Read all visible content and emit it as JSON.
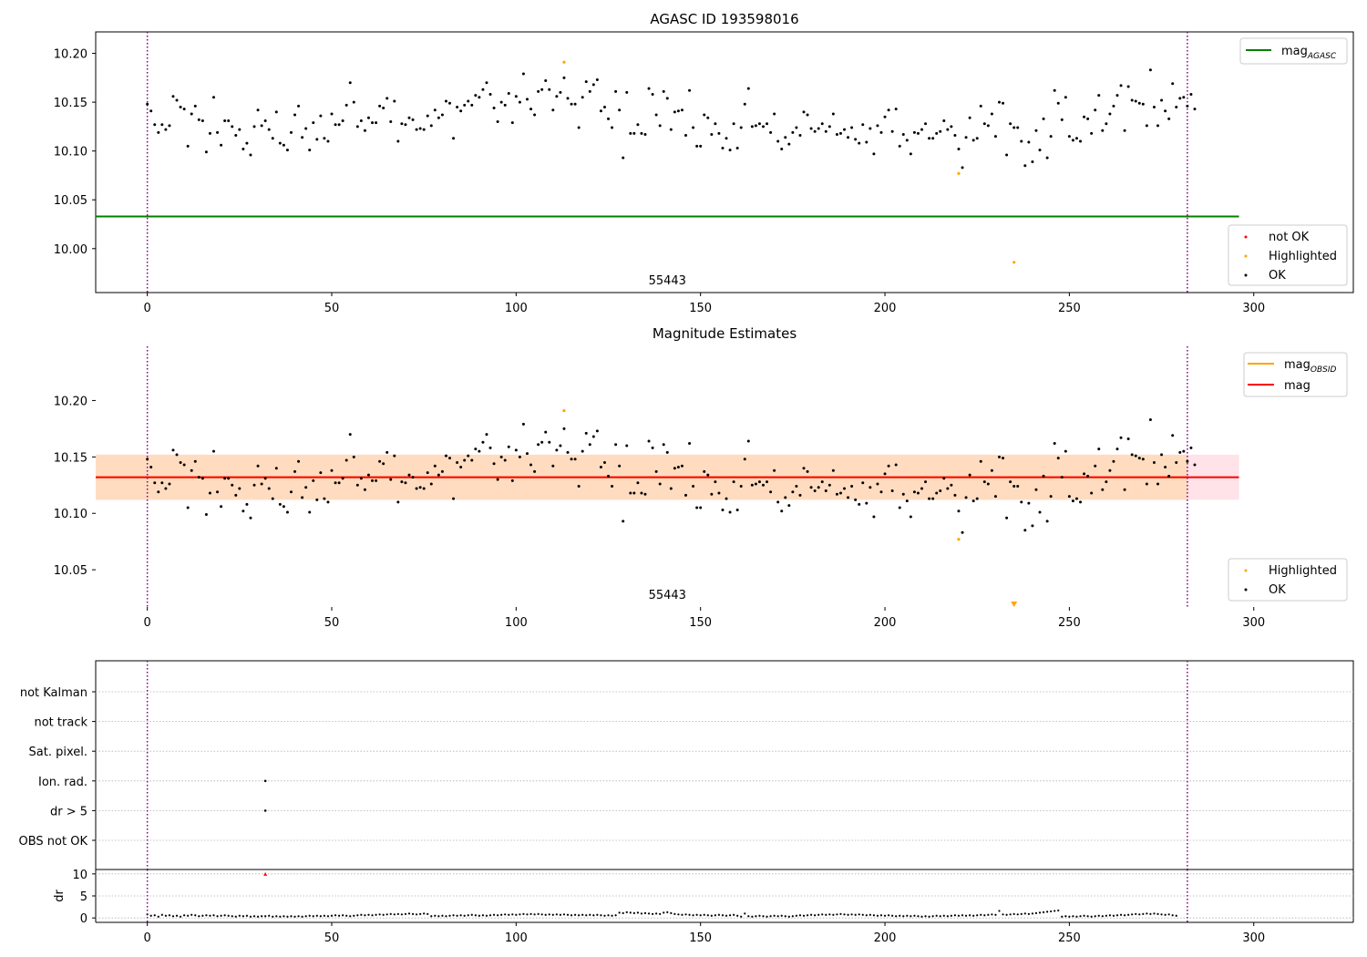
{
  "figure": {
    "background": "#ffffff"
  },
  "colors": {
    "ok": "#000000",
    "highlighted": "#ffa500",
    "not_ok": "#ff0000",
    "agasc_line": "#008000",
    "obsid_line": "#ffa500",
    "mag_line": "#ff0000",
    "band_outer": "#ffc0cb",
    "band_inner": "#ffdab9",
    "obs_boundary": "#800080",
    "grid": "#b0b0b0"
  },
  "chart_data": [
    {
      "id": "agasc",
      "type": "scatter",
      "title": "AGASC ID 193598016",
      "xlim": [
        -14,
        327
      ],
      "ylim": [
        9.955,
        10.222
      ],
      "xticks": [
        0,
        50,
        100,
        150,
        200,
        250,
        300
      ],
      "xtick_labels": [
        "0",
        "50",
        "100",
        "150",
        "200",
        "250",
        "300"
      ],
      "yticks": [
        10.0,
        10.05,
        10.1,
        10.15,
        10.2
      ],
      "ytick_labels": [
        "10.00",
        "10.05",
        "10.10",
        "10.15",
        "10.20"
      ],
      "obs_boundaries": [
        0,
        282
      ],
      "obs_label": {
        "text": "55443",
        "x": 141
      },
      "agasc_mag": 10.033,
      "line_x_range": [
        -14,
        296
      ],
      "legend_lines": [
        {
          "name": "mag",
          "sub": "AGASC",
          "color": "#008000"
        }
      ],
      "legend_points": [
        {
          "name": "not OK",
          "color": "#ff0000"
        },
        {
          "name": "Highlighted",
          "color": "#ffa500"
        },
        {
          "name": "OK",
          "color": "#000000"
        }
      ],
      "ok_series": "ok",
      "highlighted": [
        [
          113,
          10.191
        ],
        [
          220,
          10.077
        ],
        [
          235,
          9.986
        ]
      ]
    },
    {
      "id": "mag_estimates",
      "type": "scatter",
      "title": "Magnitude Estimates",
      "xlim": [
        -14,
        327
      ],
      "ylim": [
        10.017,
        10.248
      ],
      "xticks": [
        0,
        50,
        100,
        150,
        200,
        250,
        300
      ],
      "xtick_labels": [
        "0",
        "50",
        "100",
        "150",
        "200",
        "250",
        "300"
      ],
      "yticks": [
        10.05,
        10.1,
        10.15,
        10.2
      ],
      "ytick_labels": [
        "10.05",
        "10.10",
        "10.15",
        "10.20"
      ],
      "obs_boundaries": [
        0,
        282
      ],
      "obs_label": {
        "text": "55443",
        "x": 141
      },
      "mag_obsid": 10.132,
      "mag": 10.132,
      "band_outer": [
        10.112,
        10.152
      ],
      "band_inner": [
        10.112,
        10.152
      ],
      "line_x_range": [
        -14,
        296
      ],
      "legend_lines": [
        {
          "name": "mag",
          "sub": "OBSID",
          "color": "#ffa500"
        },
        {
          "name": "mag",
          "sub": "",
          "color": "#ff0000"
        }
      ],
      "legend_points": [
        {
          "name": "Highlighted",
          "color": "#ffa500"
        },
        {
          "name": "OK",
          "color": "#000000"
        }
      ],
      "ok_series": "ok",
      "highlighted": [
        [
          113,
          10.191
        ],
        [
          220,
          10.077
        ]
      ],
      "clipped_marker": [
        235,
        10.017
      ]
    },
    {
      "id": "flags",
      "type": "scatter",
      "xlim": [
        -14,
        327
      ],
      "categories": [
        "not Kalman",
        "not track",
        "Sat. pixel.",
        "Ion. rad.",
        "dr > 5",
        "OBS not OK"
      ],
      "flagged_points": [
        {
          "category": "Ion. rad.",
          "x": 32
        },
        {
          "category": "dr > 5",
          "x": 32
        }
      ],
      "obs_boundaries": [
        0,
        282
      ]
    },
    {
      "id": "dr",
      "type": "scatter",
      "ylabel": "dr",
      "xlim": [
        -14,
        327
      ],
      "ylim": [
        -1,
        11
      ],
      "yticks": [
        0,
        5,
        10
      ],
      "ytick_labels": [
        "0",
        "5",
        "10"
      ],
      "xticks": [
        0,
        50,
        100,
        150,
        200,
        250,
        300
      ],
      "xtick_labels": [
        "0",
        "50",
        "100",
        "150",
        "200",
        "250",
        "300"
      ],
      "obs_boundaries": [
        0,
        282
      ],
      "not_ok_marker": [
        32,
        10
      ],
      "dr_values": [
        0.8,
        0.5,
        0.6,
        0.3,
        0.7,
        0.5,
        0.6,
        0.4,
        0.5,
        0.3,
        0.6,
        0.5,
        0.7,
        0.6,
        0.4,
        0.5,
        0.6,
        0.5,
        0.6,
        0.4,
        0.5,
        0.6,
        0.5,
        0.4,
        0.3,
        0.5,
        0.4,
        0.5,
        0.3,
        0.4,
        0.3,
        0.4,
        0.4,
        0.5,
        0.3,
        0.4,
        0.3,
        0.4,
        0.3,
        0.4,
        0.3,
        0.4,
        0.3,
        0.4,
        0.5,
        0.4,
        0.5,
        0.4,
        0.5,
        0.4,
        0.5,
        0.6,
        0.5,
        0.6,
        0.5,
        0.4,
        0.5,
        0.6,
        0.7,
        0.6,
        0.7,
        0.6,
        0.7,
        0.8,
        0.7,
        0.8,
        0.9,
        0.8,
        0.9,
        0.8,
        0.9,
        1.0,
        0.9,
        0.8,
        0.9,
        1.0,
        0.9,
        0.4,
        0.5,
        0.4,
        0.5,
        0.4,
        0.5,
        0.6,
        0.5,
        0.6,
        0.5,
        0.6,
        0.7,
        0.6,
        0.5,
        0.6,
        0.5,
        0.6,
        0.7,
        0.6,
        0.7,
        0.8,
        0.7,
        0.8,
        0.7,
        0.8,
        0.9,
        0.8,
        0.9,
        0.8,
        0.9,
        0.8,
        0.7,
        0.8,
        0.7,
        0.8,
        0.7,
        0.8,
        0.7,
        0.6,
        0.7,
        0.6,
        0.7,
        0.6,
        0.7,
        0.6,
        0.7,
        0.6,
        0.5,
        0.6,
        0.5,
        0.6,
        1.2,
        1.1,
        1.3,
        1.2,
        1.1,
        1.2,
        1.0,
        1.1,
        1.0,
        0.9,
        1.0,
        0.9,
        1.2,
        1.3,
        1.1,
        0.9,
        0.8,
        0.7,
        0.8,
        0.7,
        0.6,
        0.7,
        0.6,
        0.7,
        0.6,
        0.5,
        0.6,
        0.7,
        0.6,
        0.5,
        0.6,
        0.7,
        0.5,
        0.3,
        1.0,
        0.4,
        0.3,
        0.4,
        0.5,
        0.4,
        0.3,
        0.4,
        0.5,
        0.4,
        0.5,
        0.4,
        0.3,
        0.4,
        0.5,
        0.6,
        0.5,
        0.6,
        0.7,
        0.6,
        0.7,
        0.8,
        0.7,
        0.8,
        0.7,
        0.8,
        0.9,
        0.8,
        0.7,
        0.8,
        0.7,
        0.8,
        0.7,
        0.6,
        0.7,
        0.6,
        0.5,
        0.6,
        0.5,
        0.6,
        0.5,
        0.4,
        0.5,
        0.4,
        0.5,
        0.4,
        0.5,
        0.4,
        0.3,
        0.4,
        0.3,
        0.4,
        0.5,
        0.4,
        0.5,
        0.4,
        0.5,
        0.6,
        0.5,
        0.6,
        0.5,
        0.6,
        0.5,
        0.6,
        0.7,
        0.6,
        0.7,
        0.8,
        0.7,
        1.6,
        0.8,
        0.7,
        0.8,
        0.9,
        0.8,
        0.9,
        1.0,
        0.9,
        1.0,
        1.1,
        1.2,
        1.3,
        1.4,
        1.5,
        1.6,
        1.7,
        0.3,
        0.4,
        0.3,
        0.4,
        0.3,
        0.4,
        0.5,
        0.4,
        0.3,
        0.4,
        0.5,
        0.4,
        0.5,
        0.6,
        0.5,
        0.6,
        0.7,
        0.6,
        0.7,
        0.8,
        0.9,
        0.8,
        0.9,
        1.0,
        0.9,
        1.0,
        0.9,
        0.8,
        0.7,
        0.8,
        0.6,
        0.5
      ]
    }
  ],
  "mag_series": {
    "name": "OK",
    "x_start": 0,
    "x_step": 1,
    "values": [
      10.148,
      10.141,
      10.127,
      10.119,
      10.127,
      10.122,
      10.126,
      10.156,
      10.152,
      10.145,
      10.143,
      10.105,
      10.138,
      10.146,
      10.132,
      10.131,
      10.099,
      10.118,
      10.155,
      10.119,
      10.106,
      10.131,
      10.131,
      10.125,
      10.116,
      10.122,
      10.102,
      10.108,
      10.096,
      10.125,
      10.142,
      10.126,
      10.131,
      10.122,
      10.113,
      10.14,
      10.108,
      10.106,
      10.101,
      10.119,
      10.137,
      10.146,
      10.114,
      10.123,
      10.101,
      10.129,
      10.112,
      10.136,
      10.113,
      10.11,
      10.138,
      10.127,
      10.127,
      10.131,
      10.147,
      10.17,
      10.15,
      10.125,
      10.131,
      10.121,
      10.134,
      10.129,
      10.129,
      10.146,
      10.144,
      10.154,
      10.13,
      10.151,
      10.11,
      10.128,
      10.127,
      10.134,
      10.132,
      10.122,
      10.123,
      10.122,
      10.136,
      10.126,
      10.142,
      10.134,
      10.137,
      10.151,
      10.149,
      10.113,
      10.145,
      10.141,
      10.147,
      10.151,
      10.147,
      10.157,
      10.155,
      10.163,
      10.17,
      10.158,
      10.144,
      10.13,
      10.15,
      10.147,
      10.159,
      10.129,
      10.156,
      10.15,
      10.179,
      10.153,
      10.143,
      10.137,
      10.161,
      10.163,
      10.172,
      10.163,
      10.142,
      10.156,
      10.16,
      10.175,
      10.154,
      10.148,
      10.148,
      10.124,
      10.155,
      10.171,
      10.161,
      10.168,
      10.173,
      10.141,
      10.145,
      10.133,
      10.124,
      10.161,
      10.142,
      10.093,
      10.16,
      10.118,
      10.118,
      10.127,
      10.118,
      10.117,
      10.164,
      10.158,
      10.137,
      10.126,
      10.161,
      10.154,
      10.122,
      10.14,
      10.141,
      10.142,
      10.116,
      10.162,
      10.124,
      10.105,
      10.105,
      10.137,
      10.134,
      10.117,
      10.128,
      10.118,
      10.103,
      10.113,
      10.101,
      10.128,
      10.103,
      10.124,
      10.148,
      10.164,
      10.125,
      10.126,
      10.128,
      10.125,
      10.128,
      10.119,
      10.138,
      10.11,
      10.102,
      10.114,
      10.107,
      10.119,
      10.124,
      10.116,
      10.14,
      10.137,
      10.123,
      10.12,
      10.123,
      10.128,
      10.12,
      10.125,
      10.138,
      10.117,
      10.118,
      10.122,
      10.114,
      10.124,
      10.112,
      10.108,
      10.127,
      10.109,
      10.123,
      10.097,
      10.126,
      10.119,
      10.135,
      10.142,
      10.12,
      10.143,
      10.105,
      10.117,
      10.111,
      10.097,
      10.119,
      10.118,
      10.122,
      10.128,
      10.113,
      10.113,
      10.118,
      10.12,
      10.131,
      10.122,
      10.125,
      10.116,
      10.102,
      10.083,
      10.114,
      10.134,
      10.111,
      10.113,
      10.146,
      10.128,
      10.126,
      10.138,
      10.115,
      10.15,
      10.149,
      10.096,
      10.128,
      10.124,
      10.124,
      10.11,
      10.085,
      10.109,
      10.089,
      10.121,
      10.101,
      10.133,
      10.093,
      10.115,
      10.162,
      10.149,
      10.132,
      10.155,
      10.115,
      10.111,
      10.113,
      10.11,
      10.135,
      10.133,
      10.118,
      10.142,
      10.157,
      10.121,
      10.128,
      10.138,
      10.146,
      10.157,
      10.167,
      10.121,
      10.166,
      10.152,
      10.151,
      10.149,
      10.148,
      10.126,
      10.183,
      10.145,
      10.126,
      10.152,
      10.141,
      10.133,
      10.169,
      10.145,
      10.154,
      10.155,
      10.146,
      10.158,
      10.143
    ]
  }
}
